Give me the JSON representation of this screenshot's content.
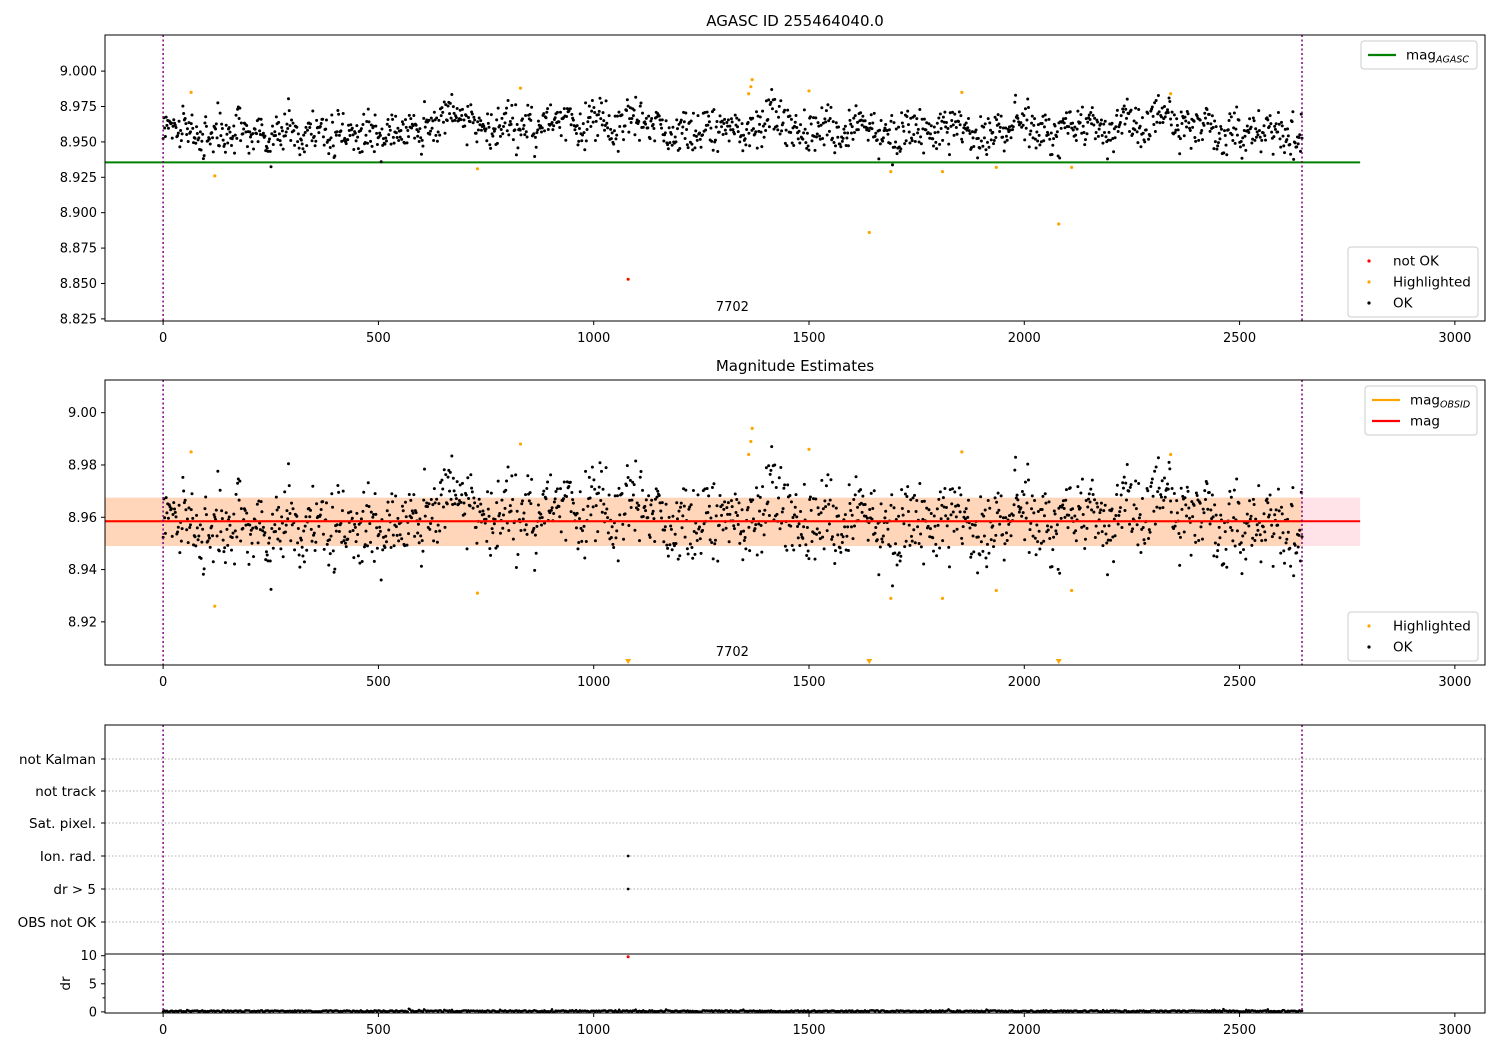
{
  "chart_data": [
    {
      "type": "scatter",
      "title": "AGASC ID 255464040.0",
      "xlim": [
        -135,
        3070
      ],
      "ylim": [
        8.8235,
        9.0255
      ],
      "xticks": [
        0,
        500,
        1000,
        1500,
        2000,
        2500,
        3000
      ],
      "yticks": [
        8.825,
        8.85,
        8.875,
        8.9,
        8.925,
        8.95,
        8.975,
        9.0
      ],
      "ytick_labels": [
        "8.825",
        "8.850",
        "8.875",
        "8.900",
        "8.925",
        "8.950",
        "8.975",
        "9.000"
      ],
      "obsid_boundaries": [
        0,
        2645
      ],
      "obsid_label": {
        "text": "7702",
        "x": 1322
      },
      "hlines": [
        {
          "name": "mag_AGASC",
          "y": 8.9355,
          "x": [
            -135,
            2780
          ],
          "color": "#008000"
        }
      ],
      "series": [
        {
          "name": "not OK",
          "color": "#ff0000",
          "x": [
            1080
          ],
          "y": [
            8.853
          ]
        },
        {
          "name": "Highlighted",
          "color": "#ffa500",
          "x": [
            65,
            120,
            730,
            830,
            1080,
            1360,
            1365,
            1368,
            1500,
            1640,
            1690,
            1810,
            1855,
            1935,
            2080,
            2110,
            2340
          ],
          "y": [
            8.985,
            8.926,
            8.931,
            8.988,
            8.853,
            8.984,
            8.989,
            8.994,
            8.986,
            8.886,
            8.929,
            8.929,
            8.985,
            8.932,
            8.892,
            8.932,
            8.984
          ]
        },
        {
          "name": "OK",
          "color": "#000000",
          "generated": {
            "n": 1500,
            "x_range": [
              0,
              2645
            ],
            "mean": 8.9585,
            "spread": 0.0095,
            "seed": 7
          }
        }
      ],
      "legends": [
        {
          "entries": [
            {
              "label": "mag",
              "sub": "AGASC",
              "kind": "line",
              "color": "#008000"
            }
          ]
        },
        {
          "entries": [
            {
              "label": "not OK",
              "kind": "dot",
              "color": "#ff0000"
            },
            {
              "label": "Highlighted",
              "kind": "dot",
              "color": "#ffa500"
            },
            {
              "label": "OK",
              "kind": "dot",
              "color": "#000000"
            }
          ]
        }
      ]
    },
    {
      "type": "scatter",
      "title": "Magnitude Estimates",
      "xlim": [
        -135,
        3070
      ],
      "ylim": [
        8.9035,
        9.0125
      ],
      "xticks": [
        0,
        500,
        1000,
        1500,
        2000,
        2500,
        3000
      ],
      "yticks": [
        8.92,
        8.94,
        8.96,
        8.98,
        9.0
      ],
      "ytick_labels": [
        "8.92",
        "8.94",
        "8.96",
        "8.98",
        "9.00"
      ],
      "obsid_boundaries": [
        0,
        2645
      ],
      "obsid_label": {
        "text": "7702",
        "x": 1322
      },
      "band": {
        "y": [
          8.949,
          8.9675
        ],
        "x": [
          -135,
          2780
        ],
        "color": "#ffc0cb",
        "overlay": {
          "x": [
            -135,
            2645
          ],
          "color": "#ffa500"
        }
      },
      "hlines": [
        {
          "name": "mag_OBSID",
          "y": 8.9585,
          "x": [
            -135,
            2645
          ],
          "color": "#ffa500"
        },
        {
          "name": "mag",
          "y": 8.9585,
          "x": [
            -135,
            2780
          ],
          "color": "#ff0000"
        }
      ],
      "out_of_range_markers": {
        "x": [
          1080,
          1640,
          2080
        ],
        "color": "#ffa500"
      },
      "series": [
        {
          "name": "Highlighted",
          "color": "#ffa500",
          "x": [
            65,
            120,
            730,
            830,
            1360,
            1365,
            1368,
            1500,
            1690,
            1810,
            1855,
            1935,
            2110,
            2340
          ],
          "y": [
            8.985,
            8.926,
            8.931,
            8.988,
            8.984,
            8.989,
            8.994,
            8.986,
            8.929,
            8.929,
            8.985,
            8.932,
            8.932,
            8.984
          ]
        },
        {
          "name": "OK",
          "color": "#000000",
          "generated": {
            "n": 1500,
            "x_range": [
              0,
              2645
            ],
            "mean": 8.9585,
            "spread": 0.0095,
            "seed": 7
          }
        }
      ],
      "legends": [
        {
          "entries": [
            {
              "label": "mag",
              "sub": "OBSID",
              "kind": "line",
              "color": "#ffa500"
            },
            {
              "label": "mag",
              "kind": "line",
              "color": "#ff0000"
            }
          ]
        },
        {
          "entries": [
            {
              "label": "Highlighted",
              "kind": "dot",
              "color": "#ffa500"
            },
            {
              "label": "OK",
              "kind": "dot",
              "color": "#000000"
            }
          ]
        }
      ]
    },
    {
      "type": "scatter",
      "title": "",
      "categories": [
        "not Kalman",
        "not track",
        "Sat. pixel.",
        "Ion. rad.",
        "dr > 5",
        "OBS not OK"
      ],
      "flags": [
        {
          "category": "Ion. rad.",
          "x": [
            1080
          ],
          "color": "#000000"
        },
        {
          "category": "dr > 5",
          "x": [
            1080
          ],
          "color": "#000000"
        }
      ],
      "xlim": [
        -135,
        3070
      ],
      "obsid_boundaries": [
        0,
        2645
      ]
    },
    {
      "type": "scatter",
      "title": "",
      "ylabel": "dr",
      "ylim": [
        -0.2,
        10.3
      ],
      "xlim": [
        -135,
        3070
      ],
      "xticks": [
        0,
        500,
        1000,
        1500,
        2000,
        2500,
        3000
      ],
      "yticks": [
        0,
        5,
        10
      ],
      "obsid_boundaries": [
        0,
        2645
      ],
      "series": [
        {
          "name": "dr not OK",
          "color": "#ff0000",
          "x": [
            1080
          ],
          "y": [
            9.8
          ]
        },
        {
          "name": "dr",
          "color": "#000000",
          "generated": {
            "n": 900,
            "x_range": [
              0,
              2645
            ],
            "mean": 0.15,
            "spread": 0.12,
            "seed": 3
          }
        }
      ]
    }
  ]
}
